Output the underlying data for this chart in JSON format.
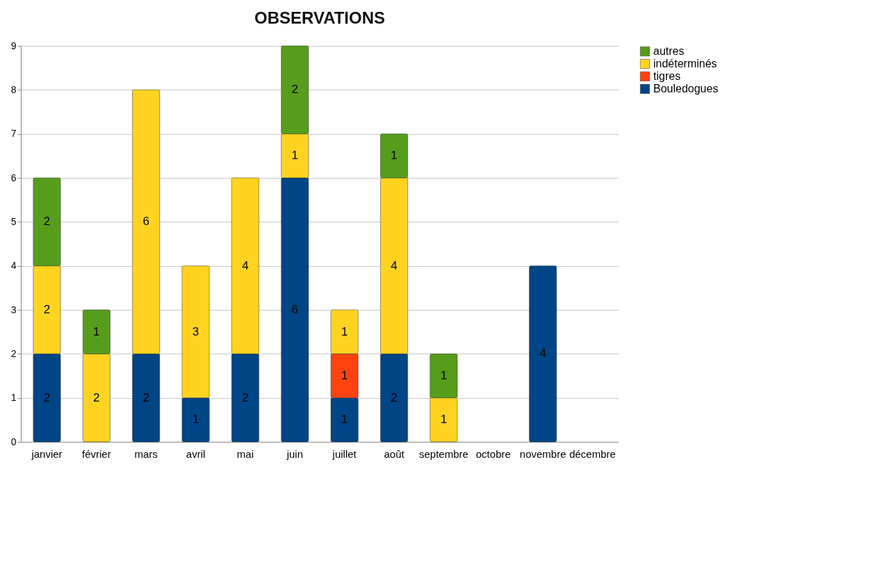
{
  "chart_data": {
    "type": "bar",
    "title": "OBSERVATIONS",
    "stacked": true,
    "data_labels": true,
    "grid": "y",
    "legend": "right",
    "categories": [
      "janvier",
      "février",
      "mars",
      "avril",
      "mai",
      "juin",
      "juillet",
      "août",
      "septembre",
      "octobre",
      "novembre",
      "décembre"
    ],
    "ylim": [
      0,
      9
    ],
    "yticks": [
      0,
      1,
      2,
      3,
      4,
      5,
      6,
      7,
      8,
      9
    ],
    "series": [
      {
        "name": "Bouledogues",
        "color": "#004586",
        "values": [
          2,
          null,
          2,
          1,
          2,
          6,
          1,
          2,
          null,
          null,
          4,
          null
        ]
      },
      {
        "name": "tigres",
        "color": "#ff420e",
        "values": [
          null,
          null,
          null,
          null,
          null,
          null,
          1,
          null,
          null,
          null,
          null,
          null
        ]
      },
      {
        "name": "indéterminés",
        "color": "#ffd320",
        "values": [
          2,
          2,
          6,
          3,
          4,
          1,
          1,
          4,
          1,
          null,
          null,
          null
        ]
      },
      {
        "name": "autres",
        "color": "#579d1c",
        "values": [
          2,
          1,
          null,
          null,
          null,
          2,
          null,
          1,
          1,
          null,
          null,
          null
        ]
      }
    ]
  }
}
